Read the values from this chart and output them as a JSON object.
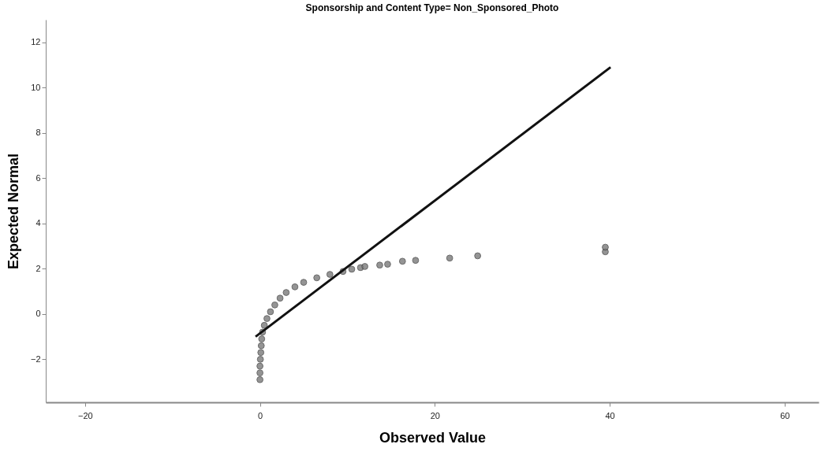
{
  "chart_data": {
    "type": "scatter",
    "title": "Sponsorship and Content Type= Non_Sponsored_Photo",
    "xlabel": "Observed Value",
    "ylabel": "Expected Normal",
    "xlim": [
      -24.5,
      63.9
    ],
    "xticks": [
      -20,
      0,
      20,
      40,
      60
    ],
    "ylim": [
      -3.9,
      13
    ],
    "yticks": [
      -2,
      0,
      2,
      4,
      6,
      8,
      10,
      12
    ],
    "grid": false,
    "marker": "circle",
    "series": [
      {
        "color": "#7a7a7a",
        "x": [
          0,
          0,
          0,
          0.05,
          0.1,
          0.15,
          0.2,
          0.3,
          0.5,
          0.8,
          1.2,
          1.7,
          2.3,
          3,
          4,
          5,
          6.5,
          8,
          9.5,
          10.5,
          11.5,
          12,
          13.7,
          14.6,
          16.3,
          17.8,
          21.7,
          24.9,
          39.5,
          39.5
        ],
        "values": [
          -2.9,
          -2.6,
          -2.3,
          -2.0,
          -1.7,
          -1.4,
          -1.1,
          -0.8,
          -0.5,
          -0.2,
          0.1,
          0.4,
          0.7,
          0.95,
          1.2,
          1.4,
          1.6,
          1.75,
          1.88,
          1.98,
          2.05,
          2.1,
          2.16,
          2.2,
          2.33,
          2.37,
          2.47,
          2.57,
          2.75,
          2.95
        ]
      },
      {
        "type": "line",
        "marker": "none",
        "color": "#111111",
        "x": [
          -0.5,
          40.1
        ],
        "values": [
          -1.0,
          10.9
        ]
      }
    ]
  }
}
